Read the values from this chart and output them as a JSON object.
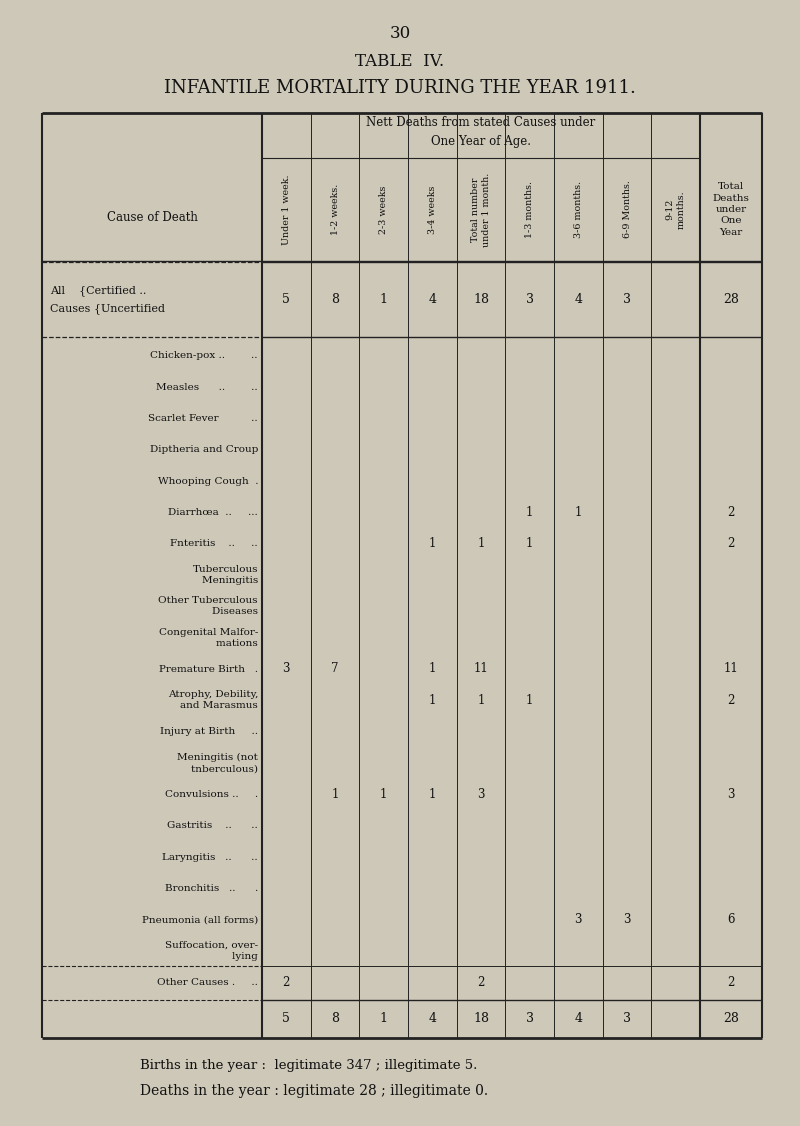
{
  "page_number": "30",
  "title1": "TABLE  IV.",
  "title2": "INFANTILE MORTALITY DURING THE YEAR 1911.",
  "bg_color": "#cec8b8",
  "line_color": "#222222",
  "text_color": "#111111",
  "col_headers_rotated": [
    "Under 1 week.",
    "1-2 weeks.",
    "2-3 weeks",
    "3-4 weeks",
    "Total number\nunder 1 month.",
    "1-3 months.",
    "3-6 months.",
    "6-9 Months.",
    "9-12\nmonths."
  ],
  "col_header_total": "Total\nDeaths\nunder\nOne\nYear",
  "all_causes_vals": [
    "5",
    "8",
    "1",
    "4",
    "18",
    "3",
    "4",
    "3",
    "",
    "28"
  ],
  "diseases": [
    {
      "label1": "Chicken-pox ..        ..",
      "label2": "",
      "vals": [
        "",
        "",
        "",
        "",
        "",
        "",
        "",
        "",
        "",
        ""
      ]
    },
    {
      "label1": "Measles      ..        ..",
      "label2": "",
      "vals": [
        "",
        "",
        "",
        "",
        "",
        "",
        "",
        "",
        "",
        ""
      ]
    },
    {
      "label1": "Scarlet Fever          ..",
      "label2": "",
      "vals": [
        "",
        "",
        "",
        "",
        "",
        "",
        "",
        "",
        "",
        ""
      ]
    },
    {
      "label1": "Diptheria and Croup",
      "label2": "",
      "vals": [
        "",
        "",
        "",
        "",
        "",
        "",
        "",
        "",
        "",
        ""
      ]
    },
    {
      "label1": "Whooping Cough  .",
      "label2": "",
      "vals": [
        "",
        "",
        "",
        "",
        "",
        "",
        "",
        "",
        "",
        ""
      ]
    },
    {
      "label1": "Diarrhœa  ..     ...",
      "label2": "",
      "vals": [
        "",
        "",
        "",
        "",
        "",
        "1",
        "1",
        "",
        "",
        "2"
      ]
    },
    {
      "label1": "Fnteritis    ..     ..",
      "label2": "",
      "vals": [
        "",
        "",
        "",
        "1",
        "1",
        "1",
        "",
        "",
        "",
        "2"
      ]
    },
    {
      "label1": "Tuberculous",
      "label2": "        Meningitis",
      "vals": [
        "",
        "",
        "",
        "",
        "",
        "",
        "",
        "",
        "",
        ""
      ]
    },
    {
      "label1": "Other Tuberculous",
      "label2": "        Diseases",
      "vals": [
        "",
        "",
        "",
        "",
        "",
        "",
        "",
        "",
        "",
        ""
      ]
    },
    {
      "label1": "Congenital Malfor-",
      "label2": "        mations",
      "vals": [
        "",
        "",
        "",
        "",
        "",
        "",
        "",
        "",
        "",
        ""
      ]
    },
    {
      "label1": "Premature Birth   .",
      "label2": "",
      "vals": [
        "3",
        "7",
        "",
        "1",
        "11",
        "",
        "",
        "",
        "",
        "11"
      ]
    },
    {
      "label1": "Atrophy, Debility,",
      "label2": "        and Marasmus",
      "vals": [
        "",
        "",
        "",
        "1",
        "1",
        "1",
        "",
        "",
        "",
        "2"
      ]
    },
    {
      "label1": "Injury at Birth     ..",
      "label2": "",
      "vals": [
        "",
        "",
        "",
        "",
        "",
        "",
        "",
        "",
        "",
        ""
      ]
    },
    {
      "label1": "Meningitis (not",
      "label2": "        tnberculous)",
      "vals": [
        "",
        "",
        "",
        "",
        "",
        "",
        "",
        "",
        "",
        ""
      ]
    },
    {
      "label1": "Convulsions ..     .",
      "label2": "",
      "vals": [
        "",
        "1",
        "1",
        "1",
        "3",
        "",
        "",
        "",
        "",
        "3"
      ]
    },
    {
      "label1": "Gastritis    ..      ..",
      "label2": "",
      "vals": [
        "",
        "",
        "",
        "",
        "",
        "",
        "",
        "",
        "",
        ""
      ]
    },
    {
      "label1": "Laryngitis   ..      ..",
      "label2": "",
      "vals": [
        "",
        "",
        "",
        "",
        "",
        "",
        "",
        "",
        "",
        ""
      ]
    },
    {
      "label1": "Bronchitis   ..      .",
      "label2": "",
      "vals": [
        "",
        "",
        "",
        "",
        "",
        "",
        "",
        "",
        "",
        ""
      ]
    },
    {
      "label1": "Pneumonia (all forms)",
      "label2": "",
      "vals": [
        "",
        "",
        "",
        "",
        "",
        "",
        "3",
        "3",
        "",
        "6"
      ]
    },
    {
      "label1": "Suffocation, over-",
      "label2": "        lying",
      "vals": [
        "",
        "",
        "",
        "",
        "",
        "",
        "",
        "",
        "",
        ""
      ]
    },
    {
      "label1": "Other Causes .     ..",
      "label2": "",
      "vals": [
        "2",
        "",
        "",
        "",
        "2",
        "",
        "",
        "",
        "",
        "2"
      ]
    }
  ],
  "totals_vals": [
    "5",
    "8",
    "1",
    "4",
    "18",
    "3",
    "4",
    "3",
    "",
    "28"
  ],
  "footer1": "Births in the year :  legitimate 347 ; illegitimate 5.",
  "footer2": "Deaths in the year : legitimate 28 ; illegitimate 0."
}
